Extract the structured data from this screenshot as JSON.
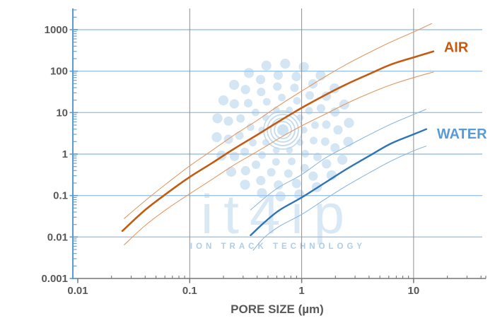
{
  "chart_data": {
    "type": "line",
    "title": "",
    "xlabel": "PORE SIZE (µm)",
    "ylabel": "",
    "x_scale": "log",
    "y_scale": "log",
    "xlim": [
      0.01,
      40
    ],
    "ylim": [
      0.001,
      3500
    ],
    "grid": true,
    "x_ticks": [
      {
        "label": "0.01",
        "value": 0.01
      },
      {
        "label": "0.1",
        "value": 0.1
      },
      {
        "label": "1",
        "value": 1
      },
      {
        "label": "10",
        "value": 10
      }
    ],
    "y_ticks": [
      {
        "label": "1000",
        "value": 1000
      },
      {
        "label": "100",
        "value": 100
      },
      {
        "label": "10",
        "value": 10
      },
      {
        "label": "1",
        "value": 1
      },
      {
        "label": "0.1",
        "value": 0.1
      },
      {
        "label": "0.01",
        "value": 0.01
      },
      {
        "label": "0.001",
        "value": 0.001
      }
    ],
    "x_gridlines": [
      0.1,
      1,
      10
    ],
    "y_gridlines": [
      1000,
      100,
      10,
      1,
      0.1,
      0.01
    ],
    "series": [
      {
        "name": "air-upper-bound",
        "color": "#E39763",
        "width": 1.1,
        "points": [
          [
            0.026,
            0.028
          ],
          [
            0.04,
            0.075
          ],
          [
            0.063,
            0.2
          ],
          [
            0.1,
            0.52
          ],
          [
            0.16,
            1.25
          ],
          [
            0.25,
            2.9
          ],
          [
            0.4,
            6.5
          ],
          [
            0.63,
            15
          ],
          [
            1,
            33
          ],
          [
            1.6,
            72
          ],
          [
            2.5,
            145
          ],
          [
            4,
            280
          ],
          [
            6.3,
            510
          ],
          [
            10,
            880
          ],
          [
            14.5,
            1400
          ]
        ]
      },
      {
        "name": "air-lower-bound",
        "color": "#E39763",
        "width": 1.1,
        "points": [
          [
            0.026,
            0.0065
          ],
          [
            0.04,
            0.019
          ],
          [
            0.063,
            0.048
          ],
          [
            0.1,
            0.11
          ],
          [
            0.16,
            0.25
          ],
          [
            0.25,
            0.55
          ],
          [
            0.4,
            1.15
          ],
          [
            0.63,
            2.4
          ],
          [
            1,
            4.8
          ],
          [
            1.6,
            9
          ],
          [
            2.5,
            16.5
          ],
          [
            4,
            29
          ],
          [
            6.3,
            47
          ],
          [
            10,
            70
          ],
          [
            15,
            95
          ]
        ]
      },
      {
        "name": "air-main",
        "color": "#C55A11",
        "width": 2.6,
        "points": [
          [
            0.025,
            0.014
          ],
          [
            0.04,
            0.045
          ],
          [
            0.063,
            0.115
          ],
          [
            0.1,
            0.28
          ],
          [
            0.16,
            0.62
          ],
          [
            0.25,
            1.35
          ],
          [
            0.4,
            2.9
          ],
          [
            0.63,
            6.2
          ],
          [
            1,
            13
          ],
          [
            1.6,
            26
          ],
          [
            2.5,
            48
          ],
          [
            4,
            85
          ],
          [
            6.3,
            145
          ],
          [
            10,
            215
          ],
          [
            15,
            300
          ]
        ]
      },
      {
        "name": "water-upper-bound",
        "color": "#8FB8DC",
        "width": 1.1,
        "points": [
          [
            0.35,
            0.045
          ],
          [
            0.46,
            0.085
          ],
          [
            0.63,
            0.16
          ],
          [
            1,
            0.32
          ],
          [
            1.6,
            0.78
          ],
          [
            2.5,
            1.5
          ],
          [
            4,
            2.9
          ],
          [
            6.3,
            5.3
          ],
          [
            10,
            9.0
          ],
          [
            12.9,
            12
          ]
        ]
      },
      {
        "name": "water-lower-bound",
        "color": "#8FB8DC",
        "width": 1.1,
        "points": [
          [
            0.37,
            0.0048
          ],
          [
            0.46,
            0.0095
          ],
          [
            0.63,
            0.018
          ],
          [
            1,
            0.035
          ],
          [
            1.6,
            0.08
          ],
          [
            2.5,
            0.17
          ],
          [
            4,
            0.35
          ],
          [
            6.3,
            0.68
          ],
          [
            10,
            1.2
          ],
          [
            12.9,
            1.55
          ]
        ]
      },
      {
        "name": "water-main",
        "color": "#2E75B6",
        "width": 2.4,
        "points": [
          [
            0.35,
            0.011
          ],
          [
            0.46,
            0.022
          ],
          [
            0.63,
            0.044
          ],
          [
            1,
            0.09
          ],
          [
            1.6,
            0.2
          ],
          [
            2.5,
            0.43
          ],
          [
            4,
            0.9
          ],
          [
            6.3,
            1.8
          ],
          [
            10,
            3.0
          ],
          [
            13,
            4.0
          ]
        ]
      }
    ],
    "annotations": [
      {
        "text": "AIR",
        "x": 24,
        "y": 380,
        "color": "#C55A11"
      },
      {
        "text": "WATER",
        "x": 27,
        "y": 3.1,
        "color": "#5B9BD5"
      }
    ],
    "legend_position": "inline-right"
  },
  "watermark": {
    "brand": "it4ip",
    "tagline": "ION TRACK TECHNOLOGY"
  },
  "colors": {
    "y_axis": "#5B9BD5",
    "x_axis": "#757575",
    "h_grid": "#9DC3E6",
    "v_grid": "#8C8C8C",
    "tick_label": "#595959",
    "watermark_dot": "#cfe3f2",
    "watermark_ring": "#c2dcee"
  }
}
